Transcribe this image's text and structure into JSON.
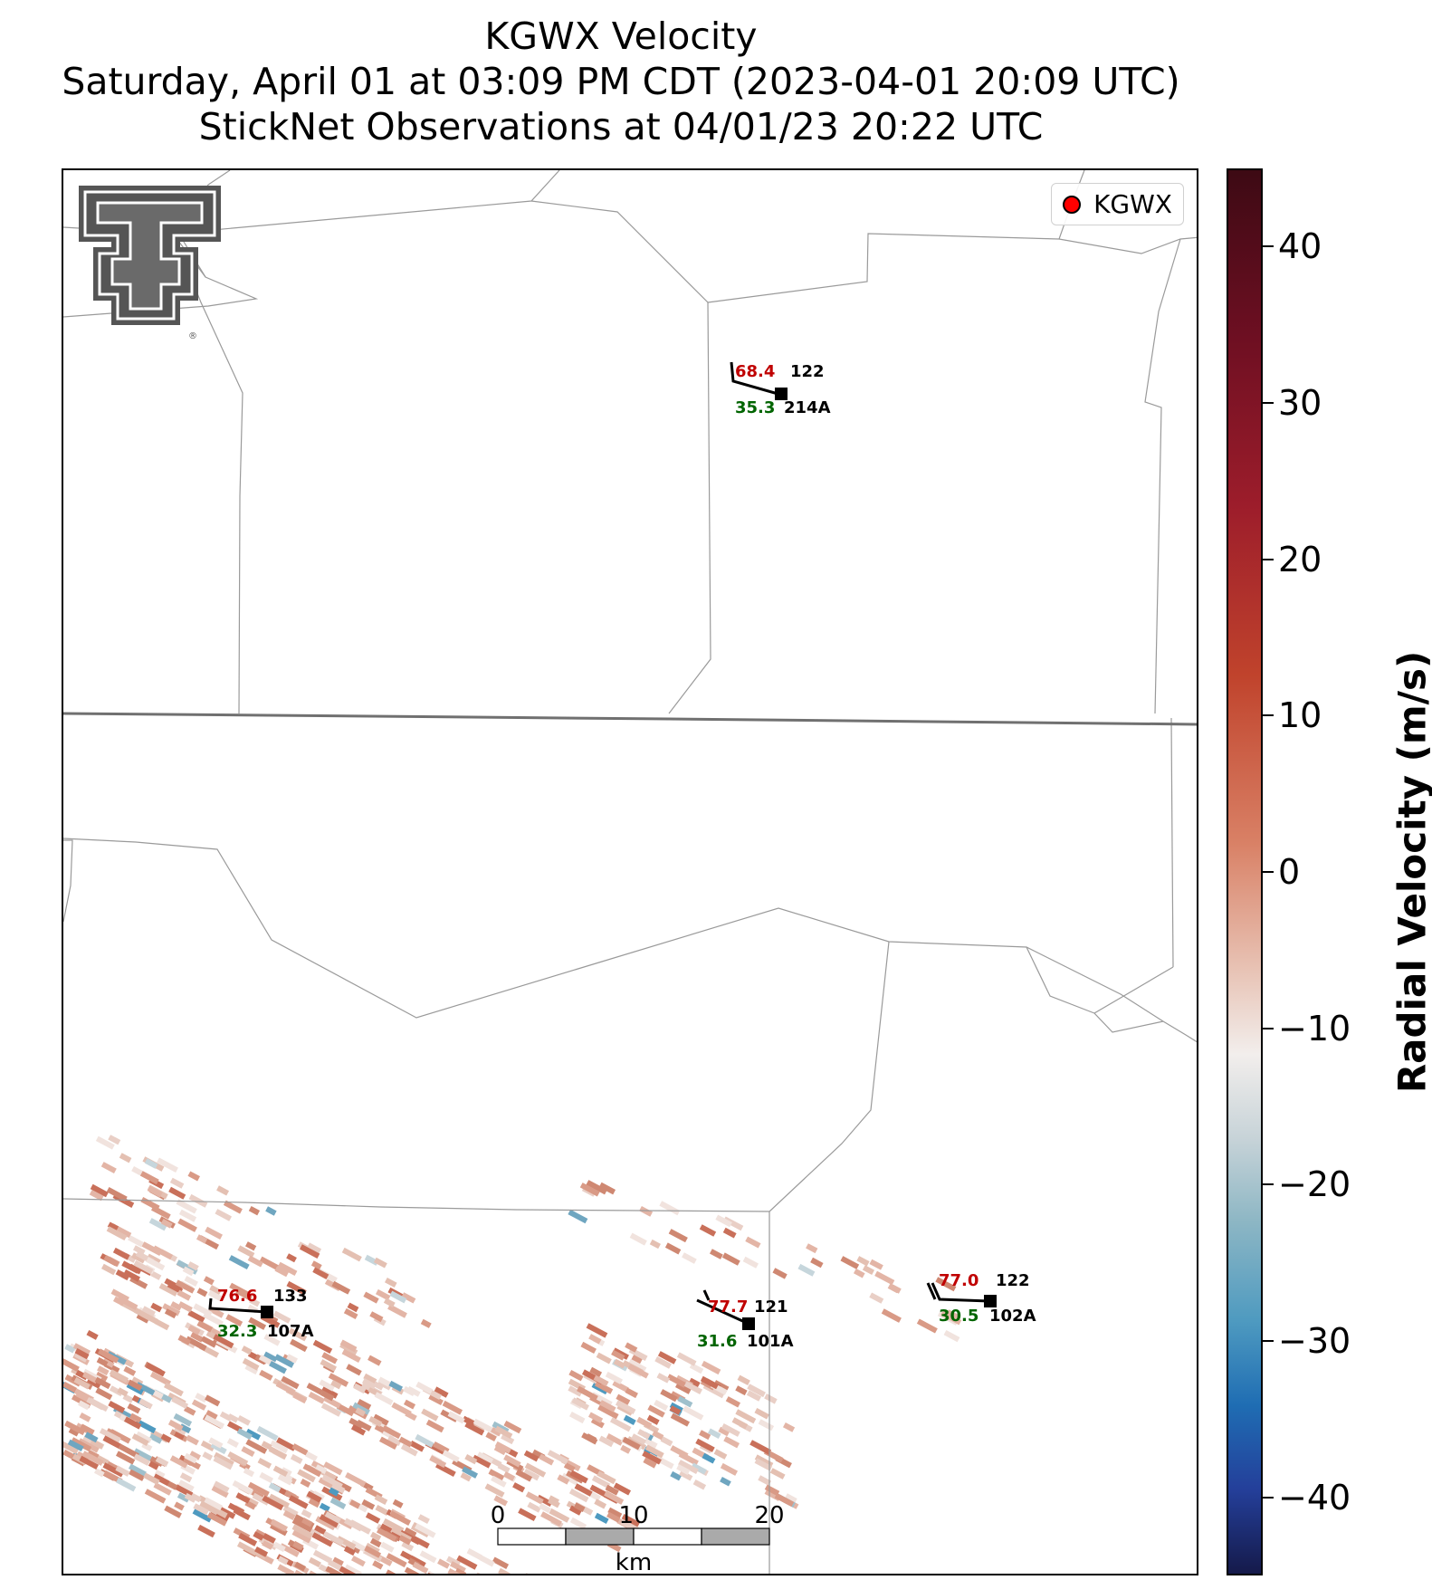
{
  "title": {
    "line1": "KGWX Velocity",
    "line2": "Saturday, April 01 at 03:09 PM CDT (2023-04-01 20:09 UTC)",
    "line3": "StickNet Observations at 04/01/23 20:22 UTC"
  },
  "legend": {
    "label": "KGWX",
    "marker_color": "#ff0000"
  },
  "colorbar": {
    "label": "Radial Velocity (m/s)",
    "ticks": [
      "40",
      "30",
      "20",
      "10",
      "0",
      "−10",
      "−20",
      "−30",
      "−40"
    ],
    "range": [
      -45,
      45
    ]
  },
  "stations": [
    {
      "id": "214A",
      "temp": "68.4",
      "dew": "35.3",
      "dir": "122"
    },
    {
      "id": "107A",
      "temp": "76.6",
      "dew": "32.3",
      "dir": "133"
    },
    {
      "id": "101A",
      "temp": "77.7",
      "dew": "31.6",
      "dir": "121"
    },
    {
      "id": "102A",
      "temp": "77.0",
      "dew": "30.5",
      "dir": "122"
    }
  ],
  "scalebar": {
    "labels": [
      "0",
      "10",
      "20"
    ],
    "unit": "km"
  },
  "logo": {
    "name": "Texas Tech Double T"
  },
  "colors": {
    "positive": "#c0432c",
    "negative": "#4e9ac0",
    "temp_text": "#c00000",
    "dew_text": "#006400"
  }
}
